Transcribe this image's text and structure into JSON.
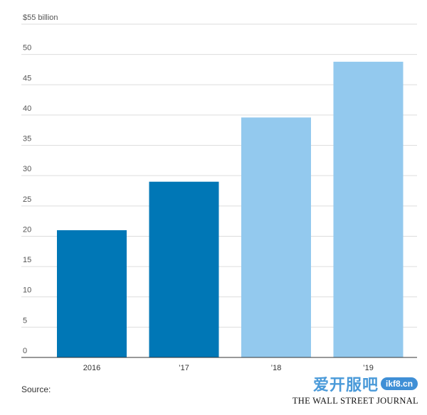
{
  "chart_data": {
    "type": "bar",
    "categories": [
      "2016",
      "’17",
      "’18",
      "’19"
    ],
    "values": [
      21,
      29,
      39.6,
      48.8
    ],
    "bar_colors": [
      "#0077b6",
      "#0077b6",
      "#93c9ee",
      "#93c9ee"
    ],
    "y_ticks": [
      {
        "value": 0,
        "label": "0"
      },
      {
        "value": 5,
        "label": "5"
      },
      {
        "value": 10,
        "label": "10"
      },
      {
        "value": 15,
        "label": "15"
      },
      {
        "value": 20,
        "label": "20"
      },
      {
        "value": 25,
        "label": "25"
      },
      {
        "value": 30,
        "label": "30"
      },
      {
        "value": 35,
        "label": "35"
      },
      {
        "value": 40,
        "label": "40"
      },
      {
        "value": 45,
        "label": "45"
      },
      {
        "value": 50,
        "label": "50"
      },
      {
        "value": 55,
        "label": "$55 billion"
      }
    ],
    "ylim": [
      0,
      55
    ],
    "grid": true
  },
  "footer": {
    "source_label": "Source:",
    "watermark_cn": "爱开服吧",
    "watermark_site": "ikf8.cn",
    "publisher": "THE WALL STREET JOURNAL"
  }
}
